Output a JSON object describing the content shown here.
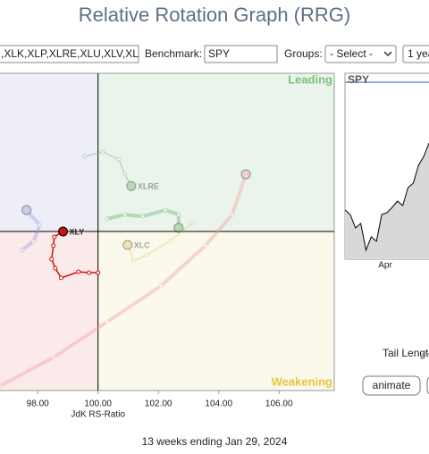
{
  "page_title": "Relative Rotation Graph (RRG)",
  "toolbar": {
    "symbols": ",XLK,XLP,XLRE,XLU,XLV,XL",
    "benchmark_label": "Benchmark:",
    "benchmark": "SPY",
    "groups_label": "Groups:",
    "groups_select": "- Select -",
    "period_select": "1 yea"
  },
  "chart_data": {
    "type": "rrg",
    "x_label": "JdK RS-Ratio",
    "quadrants": {
      "leading": "Leading",
      "weakening": "Weakening"
    },
    "xlim": [
      96.75,
      107.83
    ],
    "ylim": [
      94.72,
      105.25
    ],
    "xticks": [
      {
        "value": 98,
        "label": "98.00"
      },
      {
        "value": 100,
        "label": "100.00"
      },
      {
        "value": 102,
        "label": "102.00"
      },
      {
        "value": 104,
        "label": "104.00"
      },
      {
        "value": 106,
        "label": "106.00"
      }
    ],
    "center": [
      100,
      100
    ],
    "series": [
      {
        "color": "#f2a0a0",
        "faded": true,
        "x": [
          96.74,
          98.52,
          100.3,
          102.08,
          103.56,
          104.45,
          104.9
        ],
        "y": [
          94.87,
          95.82,
          97.0,
          98.19,
          99.53,
          100.56,
          101.9
        ]
      },
      {
        "color": "#9a9ad8",
        "faded": true,
        "x": [
          97.48,
          97.86,
          98.07,
          97.63
        ],
        "y": [
          99.38,
          99.67,
          100.21,
          100.71
        ]
      },
      {
        "name": "XLRE",
        "color": "#6ab06a",
        "faded": true,
        "x": [
          99.55,
          100.15,
          100.68,
          100.89,
          101.1
        ],
        "y": [
          102.49,
          102.64,
          102.4,
          101.9,
          101.51
        ]
      },
      {
        "color": "#6ab06a",
        "faded": true,
        "x": [
          100.3,
          100.89,
          101.48,
          102.23,
          102.67,
          102.67
        ],
        "y": [
          100.42,
          100.56,
          100.5,
          100.71,
          100.56,
          100.12
        ]
      },
      {
        "name": "XLC",
        "color": "#e0c060",
        "faded": true,
        "x": [
          103.12,
          102.37,
          101.63,
          101.19,
          100.98
        ],
        "y": [
          100.27,
          99.67,
          99.23,
          99.02,
          99.55
        ]
      },
      {
        "name": "XLY",
        "color": "#cc1010",
        "faded": false,
        "x": [
          100.0,
          99.7,
          99.35,
          98.78,
          98.58,
          98.46,
          98.52,
          98.55,
          98.84
        ],
        "y": [
          98.63,
          98.63,
          98.66,
          98.46,
          98.78,
          99.08,
          99.53,
          99.82,
          100.0
        ]
      }
    ]
  },
  "side_chart": {
    "type": "area",
    "title": "SPY",
    "x_label": "Apr",
    "ylim": [
      0,
      208
    ],
    "values": [
      55,
      50,
      35,
      40,
      10,
      25,
      20,
      50,
      52,
      58,
      65,
      60,
      80,
      85,
      105,
      115,
      130
    ]
  },
  "controls": {
    "tail_length_label": "Tail Length:",
    "animate_button": "animate"
  },
  "footer": "13 weeks ending Jan 29, 2024"
}
